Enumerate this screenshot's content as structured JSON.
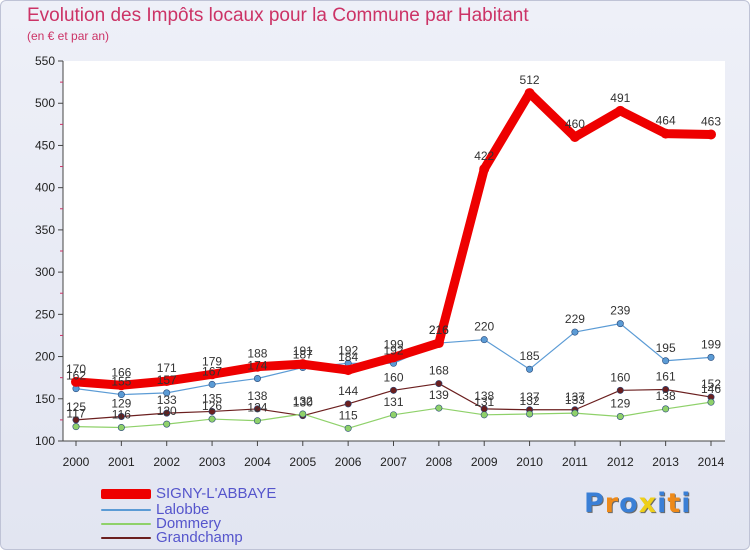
{
  "chart_data": {
    "type": "line",
    "title": "Evolution des Impôts locaux pour la Commune par Habitant",
    "subtitle": "(en € et par an)",
    "x": [
      "2000",
      "2001",
      "2002",
      "2003",
      "2004",
      "2005",
      "2006",
      "2007",
      "2008",
      "2009",
      "2010",
      "2011",
      "2012",
      "2013",
      "2014"
    ],
    "ylim": [
      100,
      550
    ],
    "yticks": [
      100,
      150,
      200,
      250,
      300,
      350,
      400,
      450,
      500,
      550
    ],
    "grid": false,
    "legend_position": "bottom-left",
    "series": [
      {
        "name": "SIGNY-L'ABBAYE",
        "color": "#ee0000",
        "values": [
          170,
          166,
          171,
          179,
          188,
          191,
          184,
          199,
          216,
          422,
          512,
          460,
          491,
          464,
          463
        ],
        "labels": [
          "170",
          "166",
          "171",
          "179",
          "188",
          "191",
          "184",
          "199",
          "216",
          "422",
          "512",
          "460",
          "491",
          "464",
          "463"
        ]
      },
      {
        "name": "Lalobbe",
        "color": "#5b9bd5",
        "values": [
          162,
          155,
          157,
          167,
          174,
          187,
          192,
          192,
          216,
          220,
          185,
          229,
          239,
          195,
          199
        ],
        "labels": [
          "162",
          "155",
          "157",
          "167",
          "174",
          "187",
          "192",
          "192",
          "216",
          "220",
          "185",
          "229",
          "239",
          "195",
          "199"
        ]
      },
      {
        "name": "Dommery",
        "color": "#8fd16a",
        "values": [
          117,
          116,
          120,
          126,
          124,
          132,
          115,
          131,
          139,
          131,
          132,
          133,
          129,
          138,
          146
        ],
        "labels": [
          "117",
          "116",
          "120",
          "126",
          "124",
          "132",
          "115",
          "131",
          "139",
          "131",
          "132",
          "133",
          "129",
          "138",
          "146"
        ]
      },
      {
        "name": "Grandchamp",
        "color": "#6b1f1f",
        "values": [
          125,
          129,
          133,
          135,
          138,
          130,
          144,
          160,
          168,
          138,
          137,
          137,
          160,
          161,
          152
        ],
        "labels": [
          "125",
          "129",
          "133",
          "135",
          "138",
          "130",
          "144",
          "160",
          "168",
          "138",
          "137",
          "137",
          "160",
          "161",
          "152"
        ]
      }
    ]
  },
  "logo": {
    "text": "Proxiti",
    "letters": [
      {
        "ch": "P",
        "color": "#3a7fd6"
      },
      {
        "ch": "r",
        "color": "#ee8a1a"
      },
      {
        "ch": "o",
        "color": "#3a7fd6"
      },
      {
        "ch": "x",
        "color": "#eecf1a"
      },
      {
        "ch": "i",
        "color": "#3a7fd6"
      },
      {
        "ch": "t",
        "color": "#ee8a1a"
      },
      {
        "ch": "i",
        "color": "#3a7fd6"
      }
    ]
  }
}
